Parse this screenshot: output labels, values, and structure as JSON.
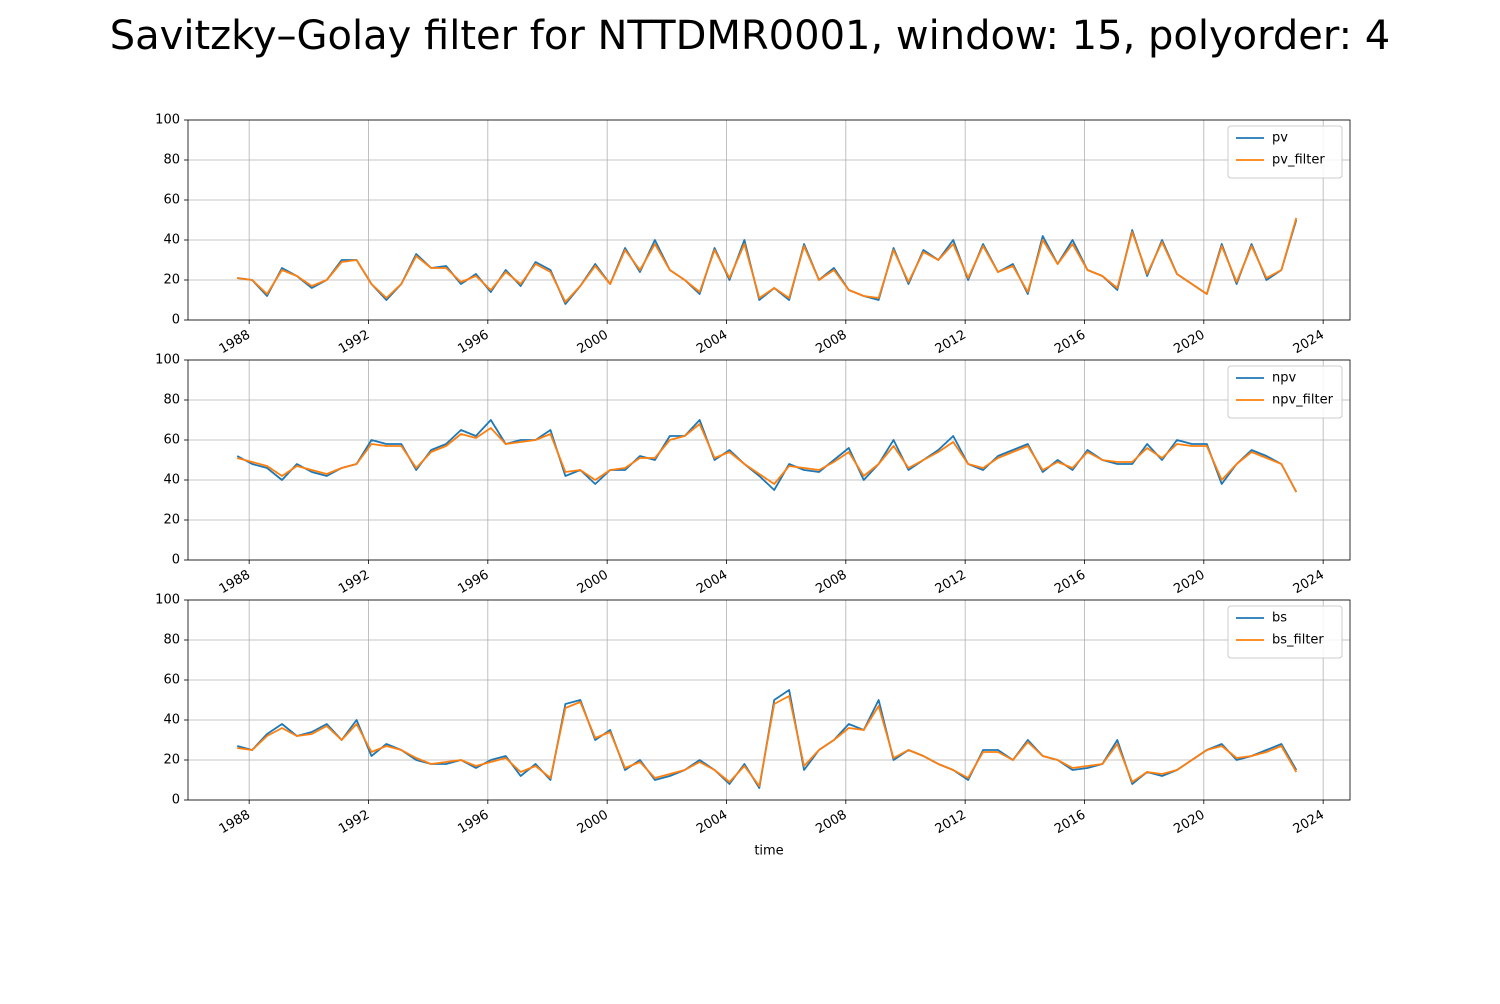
{
  "title": "Savitzky–Golay filter for NTTDMR0001, window: 15, polyorder: 4",
  "chart_data": [
    {
      "type": "line",
      "x": [
        1987.6,
        1988.1,
        1988.6,
        1989.1,
        1989.6,
        1990.1,
        1990.6,
        1991.1,
        1991.6,
        1992.1,
        1992.6,
        1993.1,
        1993.6,
        1994.1,
        1994.6,
        1995.1,
        1995.6,
        1996.1,
        1996.6,
        1997.1,
        1997.6,
        1998.1,
        1998.6,
        1999.1,
        1999.6,
        2000.1,
        2000.6,
        2001.1,
        2001.6,
        2002.1,
        2002.6,
        2003.1,
        2003.6,
        2004.1,
        2004.6,
        2005.1,
        2005.6,
        2006.1,
        2006.6,
        2007.1,
        2007.6,
        2008.1,
        2008.6,
        2009.1,
        2009.6,
        2010.1,
        2010.6,
        2011.1,
        2011.6,
        2012.1,
        2012.6,
        2013.1,
        2013.6,
        2014.1,
        2014.6,
        2015.1,
        2015.6,
        2016.1,
        2016.6,
        2017.1,
        2017.6,
        2018.1,
        2018.6,
        2019.1,
        2019.6,
        2020.1,
        2020.6,
        2021.1,
        2021.6,
        2022.1,
        2022.6,
        2023.1
      ],
      "series": [
        {
          "name": "pv",
          "color": "#1f77b4",
          "values": [
            21,
            20,
            12,
            26,
            22,
            16,
            20,
            30,
            30,
            18,
            10,
            18,
            33,
            26,
            27,
            18,
            23,
            14,
            25,
            17,
            29,
            25,
            8,
            17,
            28,
            18,
            36,
            24,
            40,
            25,
            20,
            13,
            36,
            20,
            40,
            10,
            16,
            10,
            38,
            20,
            26,
            15,
            12,
            10,
            36,
            18,
            35,
            30,
            40,
            20,
            38,
            24,
            28,
            13,
            42,
            28,
            40,
            25,
            22,
            15,
            45,
            22,
            40,
            23,
            18,
            13,
            38,
            18,
            38,
            20,
            25,
            50
          ]
        },
        {
          "name": "pv_filter",
          "color": "#ff7f0e",
          "values": [
            21,
            20,
            13,
            25,
            22,
            17,
            20,
            29,
            30,
            18,
            11,
            18,
            32,
            26,
            26,
            19,
            22,
            15,
            24,
            18,
            28,
            24,
            9,
            17,
            27,
            18,
            35,
            25,
            38,
            25,
            20,
            14,
            35,
            21,
            38,
            11,
            16,
            11,
            37,
            20,
            25,
            15,
            12,
            11,
            35,
            19,
            34,
            30,
            38,
            21,
            37,
            24,
            27,
            14,
            40,
            28,
            38,
            25,
            22,
            16,
            44,
            23,
            39,
            23,
            18,
            13,
            37,
            19,
            37,
            21,
            25,
            51
          ]
        }
      ],
      "xlim": [
        1985.95,
        2024.9
      ],
      "xticks": [
        1988,
        1992,
        1996,
        2000,
        2004,
        2008,
        2012,
        2016,
        2020,
        2024
      ],
      "ylim": [
        0,
        100
      ],
      "yticks": [
        0,
        20,
        40,
        60,
        80,
        100
      ],
      "grid": true,
      "legend": "upper-right"
    },
    {
      "type": "line",
      "x": [
        1987.6,
        1988.1,
        1988.6,
        1989.1,
        1989.6,
        1990.1,
        1990.6,
        1991.1,
        1991.6,
        1992.1,
        1992.6,
        1993.1,
        1993.6,
        1994.1,
        1994.6,
        1995.1,
        1995.6,
        1996.1,
        1996.6,
        1997.1,
        1997.6,
        1998.1,
        1998.6,
        1999.1,
        1999.6,
        2000.1,
        2000.6,
        2001.1,
        2001.6,
        2002.1,
        2002.6,
        2003.1,
        2003.6,
        2004.1,
        2004.6,
        2005.1,
        2005.6,
        2006.1,
        2006.6,
        2007.1,
        2007.6,
        2008.1,
        2008.6,
        2009.1,
        2009.6,
        2010.1,
        2010.6,
        2011.1,
        2011.6,
        2012.1,
        2012.6,
        2013.1,
        2013.6,
        2014.1,
        2014.6,
        2015.1,
        2015.6,
        2016.1,
        2016.6,
        2017.1,
        2017.6,
        2018.1,
        2018.6,
        2019.1,
        2019.6,
        2020.1,
        2020.6,
        2021.1,
        2021.6,
        2022.1,
        2022.6,
        2023.1
      ],
      "series": [
        {
          "name": "npv",
          "color": "#1f77b4",
          "values": [
            52,
            48,
            46,
            40,
            48,
            44,
            42,
            46,
            48,
            60,
            58,
            58,
            45,
            55,
            58,
            65,
            62,
            70,
            58,
            60,
            60,
            65,
            42,
            45,
            38,
            45,
            45,
            52,
            50,
            62,
            62,
            70,
            50,
            55,
            48,
            42,
            35,
            48,
            45,
            44,
            50,
            56,
            40,
            48,
            60,
            45,
            50,
            55,
            62,
            48,
            45,
            52,
            55,
            58,
            44,
            50,
            45,
            55,
            50,
            48,
            48,
            58,
            50,
            60,
            58,
            58,
            38,
            48,
            55,
            52,
            48,
            34
          ]
        },
        {
          "name": "npv_filter",
          "color": "#ff7f0e",
          "values": [
            51,
            49,
            47,
            42,
            47,
            45,
            43,
            46,
            48,
            58,
            57,
            57,
            46,
            54,
            57,
            63,
            61,
            66,
            58,
            59,
            60,
            63,
            44,
            45,
            40,
            45,
            46,
            51,
            51,
            60,
            62,
            68,
            51,
            54,
            48,
            43,
            38,
            47,
            46,
            45,
            49,
            54,
            42,
            48,
            57,
            46,
            50,
            54,
            59,
            48,
            46,
            51,
            54,
            57,
            45,
            49,
            46,
            54,
            50,
            49,
            49,
            56,
            51,
            58,
            57,
            57,
            40,
            48,
            54,
            51,
            48,
            34
          ]
        }
      ],
      "xlim": [
        1985.95,
        2024.9
      ],
      "xticks": [
        1988,
        1992,
        1996,
        2000,
        2004,
        2008,
        2012,
        2016,
        2020,
        2024
      ],
      "ylim": [
        0,
        100
      ],
      "yticks": [
        0,
        20,
        40,
        60,
        80,
        100
      ],
      "grid": true,
      "legend": "upper-right"
    },
    {
      "type": "line",
      "xlabel": "time",
      "x": [
        1987.6,
        1988.1,
        1988.6,
        1989.1,
        1989.6,
        1990.1,
        1990.6,
        1991.1,
        1991.6,
        1992.1,
        1992.6,
        1993.1,
        1993.6,
        1994.1,
        1994.6,
        1995.1,
        1995.6,
        1996.1,
        1996.6,
        1997.1,
        1997.6,
        1998.1,
        1998.6,
        1999.1,
        1999.6,
        2000.1,
        2000.6,
        2001.1,
        2001.6,
        2002.1,
        2002.6,
        2003.1,
        2003.6,
        2004.1,
        2004.6,
        2005.1,
        2005.6,
        2006.1,
        2006.6,
        2007.1,
        2007.6,
        2008.1,
        2008.6,
        2009.1,
        2009.6,
        2010.1,
        2010.6,
        2011.1,
        2011.6,
        2012.1,
        2012.6,
        2013.1,
        2013.6,
        2014.1,
        2014.6,
        2015.1,
        2015.6,
        2016.1,
        2016.6,
        2017.1,
        2017.6,
        2018.1,
        2018.6,
        2019.1,
        2019.6,
        2020.1,
        2020.6,
        2021.1,
        2021.6,
        2022.1,
        2022.6,
        2023.1
      ],
      "series": [
        {
          "name": "bs",
          "color": "#1f77b4",
          "values": [
            27,
            25,
            33,
            38,
            32,
            34,
            38,
            30,
            40,
            22,
            28,
            25,
            20,
            18,
            18,
            20,
            16,
            20,
            22,
            12,
            18,
            10,
            48,
            50,
            30,
            35,
            15,
            20,
            10,
            12,
            15,
            20,
            15,
            8,
            18,
            6,
            50,
            55,
            15,
            25,
            30,
            38,
            35,
            50,
            20,
            25,
            22,
            18,
            15,
            10,
            25,
            25,
            20,
            30,
            22,
            20,
            15,
            16,
            18,
            30,
            8,
            14,
            12,
            15,
            20,
            25,
            28,
            20,
            22,
            25,
            28,
            15
          ]
        },
        {
          "name": "bs_filter",
          "color": "#ff7f0e",
          "values": [
            26,
            25,
            32,
            36,
            32,
            33,
            37,
            30,
            38,
            24,
            27,
            25,
            21,
            18,
            19,
            20,
            17,
            19,
            21,
            14,
            17,
            11,
            46,
            49,
            31,
            34,
            16,
            19,
            11,
            13,
            15,
            19,
            15,
            9,
            17,
            7,
            48,
            52,
            17,
            25,
            30,
            36,
            35,
            47,
            21,
            25,
            22,
            18,
            15,
            11,
            24,
            24,
            20,
            29,
            22,
            20,
            16,
            17,
            18,
            28,
            9,
            14,
            13,
            15,
            20,
            25,
            27,
            21,
            22,
            24,
            27,
            14
          ]
        }
      ],
      "xlim": [
        1985.95,
        2024.9
      ],
      "xticks": [
        1988,
        1992,
        1996,
        2000,
        2004,
        2008,
        2012,
        2016,
        2020,
        2024
      ],
      "ylim": [
        0,
        100
      ],
      "yticks": [
        0,
        20,
        40,
        60,
        80,
        100
      ],
      "grid": true,
      "legend": "upper-right"
    }
  ]
}
